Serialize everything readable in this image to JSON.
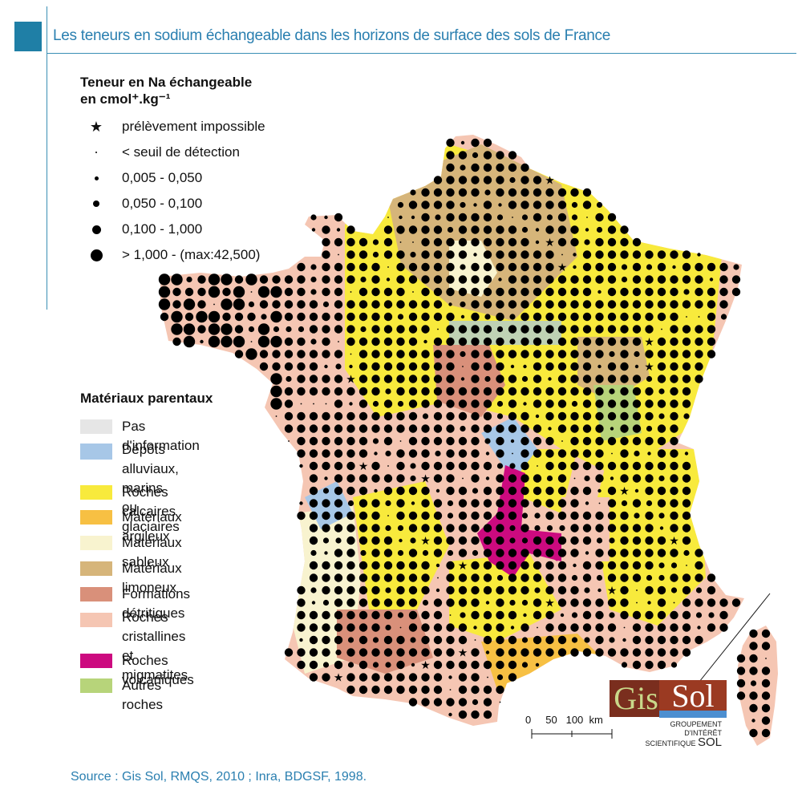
{
  "title": "Les teneurs en sodium échangeable dans les horizons de surface des sols de France",
  "legend_na": {
    "title_line1": "Teneur en Na échangeable",
    "title_line2": "en cmol⁺.kg⁻¹",
    "items": [
      {
        "symbol": "star",
        "label": "prélèvement impossible"
      },
      {
        "symbol": "dot-0",
        "label": "< seuil de détection"
      },
      {
        "symbol": "dot-1",
        "label": "0,005 - 0,050"
      },
      {
        "symbol": "dot-2",
        "label": "0,050 - 0,100"
      },
      {
        "symbol": "dot-3",
        "label": "0,100 - 1,000"
      },
      {
        "symbol": "dot-4",
        "label": "> 1,000 - (max:42,500)"
      }
    ]
  },
  "legend_materials": {
    "title": "Matériaux parentaux",
    "items": [
      {
        "label": "Pas d'information",
        "color": "#e6e6e6"
      },
      {
        "label": "Dépôts alluviaux,\nmarins ou glaciaires",
        "color": "#a7c7e7"
      },
      {
        "label": "Roches calcaires",
        "color": "#f8ea3c"
      },
      {
        "label": "Matériaux argileux",
        "color": "#f7c043"
      },
      {
        "label": "Matériaux sableux",
        "color": "#f8f3cf"
      },
      {
        "label": "Matériaux limoneux",
        "color": "#d6b57a"
      },
      {
        "label": "Formations détritiques",
        "color": "#d9907a"
      },
      {
        "label": "Roches cristallines\net migmatites",
        "color": "#f5c6b3"
      },
      {
        "label": "Roches volcaniques",
        "color": "#cc0a7f"
      },
      {
        "label": "Autres roches",
        "color": "#b7d47a"
      }
    ]
  },
  "scale": {
    "labels": "0     50   100  km"
  },
  "source": "Source : Gis Sol, RMQS, 2010 ; Inra, BDGSF, 1998.",
  "logo": {
    "gis": "Gis",
    "sol": "Sol",
    "line1": "GROUPEMENT",
    "line2": "D'INTÉRÊT",
    "line3": "SCIENTIFIQUE",
    "line3_big": "SOL"
  }
}
